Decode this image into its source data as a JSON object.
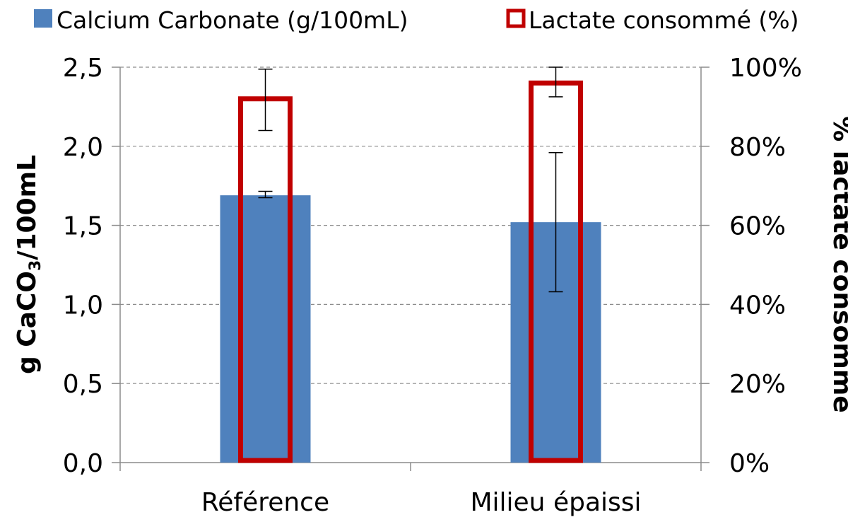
{
  "chart_data": {
    "type": "bar",
    "categories": [
      "Référence",
      "Milieu épaissi"
    ],
    "series": [
      {
        "name": "Calcium Carbonate (g/100mL)",
        "axis": "left",
        "style": "filled",
        "color": "#4F81BD",
        "values": [
          1.69,
          1.52
        ],
        "error_low": [
          1.675,
          1.08
        ],
        "error_high": [
          1.715,
          1.96
        ]
      },
      {
        "name": "Lactate consommé (%)",
        "axis": "right",
        "style": "outline",
        "color": "#C00000",
        "values": [
          92,
          96
        ],
        "error_low": [
          84,
          92.5
        ],
        "error_high": [
          99.5,
          100
        ]
      }
    ],
    "y_left": {
      "label_main": "g CaCO",
      "label_sub": "3",
      "label_tail": "/100mL",
      "range": [
        0,
        2.5
      ],
      "ticks": [
        "0,0",
        "0,5",
        "1,0",
        "1,5",
        "2,0",
        "2,5"
      ]
    },
    "y_right": {
      "label": "% lactate consommé",
      "range": [
        0,
        100
      ],
      "ticks": [
        "0%",
        "20%",
        "40%",
        "60%",
        "80%",
        "100%"
      ]
    },
    "grid": true,
    "legend_position": "top"
  }
}
